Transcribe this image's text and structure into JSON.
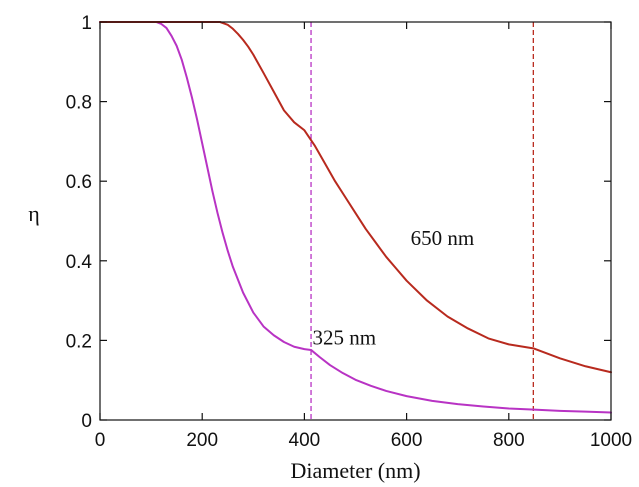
{
  "chart_data": {
    "type": "line",
    "title": "",
    "xlabel": "Diameter (nm)",
    "ylabel": "η",
    "xlim": [
      0,
      1000
    ],
    "ylim": [
      0,
      1
    ],
    "x_ticks": [
      "0",
      "200",
      "400",
      "600",
      "800",
      "1000"
    ],
    "y_ticks": [
      "0",
      "0.2",
      "0.4",
      "0.6",
      "0.8",
      "1"
    ],
    "grid": false,
    "legend": "none",
    "series": [
      {
        "name": "325 nm",
        "color": "#b833c4",
        "x": [
          0,
          110,
          120,
          130,
          140,
          150,
          160,
          170,
          180,
          190,
          200,
          210,
          220,
          230,
          240,
          250,
          260,
          280,
          300,
          320,
          340,
          360,
          380,
          400,
          413,
          430,
          450,
          475,
          500,
          530,
          560,
          600,
          650,
          700,
          750,
          800,
          850,
          900,
          950,
          1000
        ],
        "y": [
          1.0,
          1.0,
          0.995,
          0.985,
          0.965,
          0.94,
          0.905,
          0.86,
          0.81,
          0.755,
          0.695,
          0.635,
          0.575,
          0.52,
          0.47,
          0.425,
          0.385,
          0.32,
          0.27,
          0.235,
          0.213,
          0.196,
          0.184,
          0.178,
          0.176,
          0.158,
          0.138,
          0.118,
          0.101,
          0.086,
          0.073,
          0.06,
          0.048,
          0.04,
          0.034,
          0.029,
          0.026,
          0.023,
          0.021,
          0.019
        ]
      },
      {
        "name": "650 nm",
        "color": "#b82a1e",
        "x": [
          0,
          235,
          250,
          260,
          270,
          280,
          290,
          300,
          320,
          340,
          360,
          380,
          400,
          420,
          440,
          460,
          480,
          500,
          520,
          540,
          560,
          580,
          600,
          640,
          680,
          720,
          760,
          800,
          848,
          900,
          950,
          1000
        ],
        "y": [
          1.0,
          1.0,
          0.993,
          0.983,
          0.97,
          0.955,
          0.938,
          0.918,
          0.872,
          0.825,
          0.778,
          0.748,
          0.728,
          0.69,
          0.645,
          0.6,
          0.56,
          0.52,
          0.48,
          0.445,
          0.41,
          0.38,
          0.35,
          0.3,
          0.26,
          0.23,
          0.205,
          0.19,
          0.18,
          0.155,
          0.135,
          0.12
        ]
      }
    ],
    "reference_lines": [
      {
        "x": 413,
        "color": "#b833c4",
        "style": "dashed"
      },
      {
        "x": 848,
        "color": "#b82a1e",
        "style": "dashed"
      }
    ],
    "annotations": [
      {
        "text": "650 nm",
        "x": 670,
        "y": 0.44
      },
      {
        "text": "325 nm",
        "x": 478,
        "y": 0.19
      }
    ]
  }
}
